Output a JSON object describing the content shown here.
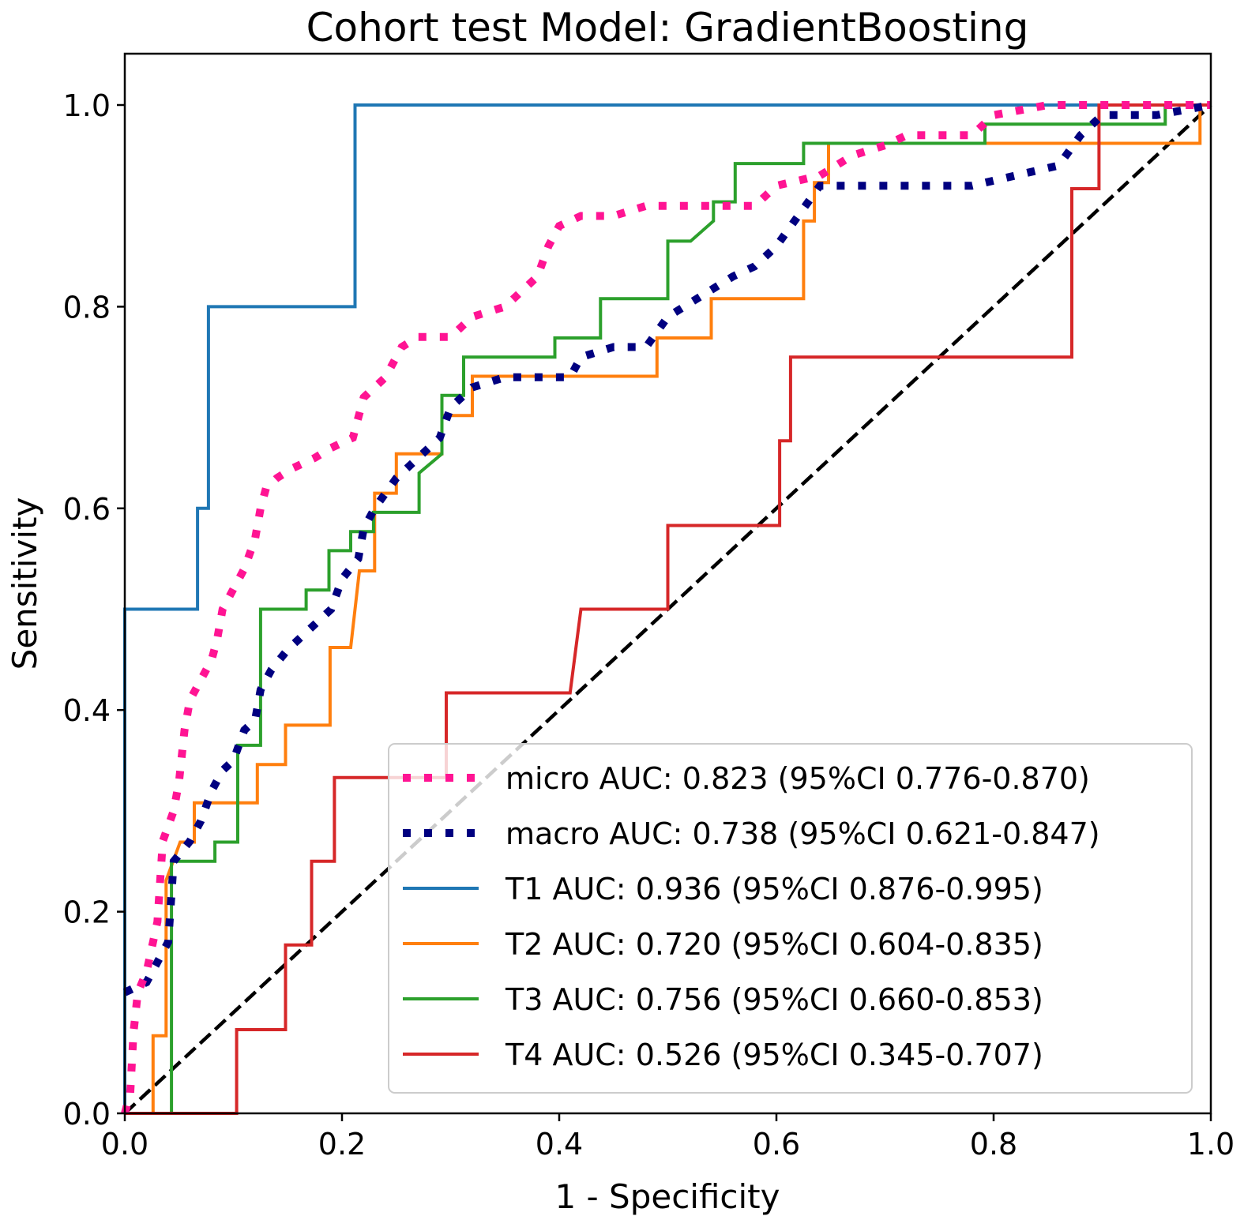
{
  "chart_data": {
    "type": "line",
    "title": "Cohort test Model: GradientBoosting",
    "xlabel": "1 - Specificity",
    "ylabel": "Sensitivity",
    "xlim": [
      0.0,
      1.0
    ],
    "ylim": [
      -0.0,
      1.05
    ],
    "xticks": [
      "0.0",
      "0.2",
      "0.4",
      "0.6",
      "0.8",
      "1.0"
    ],
    "yticks": [
      "0.0",
      "0.2",
      "0.4",
      "0.6",
      "0.8",
      "1.0"
    ],
    "grid": false,
    "legend_position": "lower-right",
    "series": [
      {
        "name": "micro",
        "label": "micro AUC: 0.823 (95%CI 0.776-0.870)",
        "color": "#ff1493",
        "style": "dotted",
        "points": [
          [
            0,
            0
          ],
          [
            0.005,
            0.02
          ],
          [
            0.008,
            0.08
          ],
          [
            0.012,
            0.12
          ],
          [
            0.02,
            0.14
          ],
          [
            0.03,
            0.19
          ],
          [
            0.035,
            0.27
          ],
          [
            0.045,
            0.3
          ],
          [
            0.05,
            0.33
          ],
          [
            0.055,
            0.38
          ],
          [
            0.06,
            0.41
          ],
          [
            0.07,
            0.43
          ],
          [
            0.08,
            0.45
          ],
          [
            0.085,
            0.47
          ],
          [
            0.09,
            0.5
          ],
          [
            0.1,
            0.52
          ],
          [
            0.11,
            0.54
          ],
          [
            0.12,
            0.57
          ],
          [
            0.125,
            0.6
          ],
          [
            0.13,
            0.62
          ],
          [
            0.14,
            0.63
          ],
          [
            0.155,
            0.64
          ],
          [
            0.175,
            0.65
          ],
          [
            0.19,
            0.66
          ],
          [
            0.21,
            0.67
          ],
          [
            0.22,
            0.71
          ],
          [
            0.24,
            0.73
          ],
          [
            0.255,
            0.76
          ],
          [
            0.27,
            0.77
          ],
          [
            0.3,
            0.77
          ],
          [
            0.32,
            0.79
          ],
          [
            0.35,
            0.8
          ],
          [
            0.38,
            0.83
          ],
          [
            0.39,
            0.86
          ],
          [
            0.4,
            0.88
          ],
          [
            0.42,
            0.89
          ],
          [
            0.45,
            0.89
          ],
          [
            0.48,
            0.9
          ],
          [
            0.52,
            0.9
          ],
          [
            0.58,
            0.9
          ],
          [
            0.6,
            0.92
          ],
          [
            0.64,
            0.93
          ],
          [
            0.67,
            0.95
          ],
          [
            0.7,
            0.96
          ],
          [
            0.72,
            0.97
          ],
          [
            0.78,
            0.97
          ],
          [
            0.8,
            0.99
          ],
          [
            0.85,
            1.0
          ],
          [
            0.95,
            1.0
          ],
          [
            1.0,
            1.0
          ]
        ]
      },
      {
        "name": "macro",
        "label": "macro AUC: 0.738 (95%CI 0.621-0.847)",
        "color": "#000080",
        "style": "dotted",
        "points": [
          [
            0,
            0.12
          ],
          [
            0.02,
            0.13
          ],
          [
            0.03,
            0.15
          ],
          [
            0.04,
            0.17
          ],
          [
            0.045,
            0.25
          ],
          [
            0.06,
            0.27
          ],
          [
            0.07,
            0.29
          ],
          [
            0.08,
            0.32
          ],
          [
            0.09,
            0.34
          ],
          [
            0.1,
            0.35
          ],
          [
            0.11,
            0.38
          ],
          [
            0.12,
            0.39
          ],
          [
            0.125,
            0.42
          ],
          [
            0.135,
            0.44
          ],
          [
            0.15,
            0.46
          ],
          [
            0.17,
            0.48
          ],
          [
            0.19,
            0.5
          ],
          [
            0.2,
            0.53
          ],
          [
            0.215,
            0.55
          ],
          [
            0.22,
            0.58
          ],
          [
            0.23,
            0.6
          ],
          [
            0.25,
            0.63
          ],
          [
            0.27,
            0.65
          ],
          [
            0.29,
            0.67
          ],
          [
            0.3,
            0.7
          ],
          [
            0.32,
            0.72
          ],
          [
            0.35,
            0.73
          ],
          [
            0.41,
            0.73
          ],
          [
            0.42,
            0.75
          ],
          [
            0.45,
            0.76
          ],
          [
            0.48,
            0.76
          ],
          [
            0.5,
            0.79
          ],
          [
            0.53,
            0.81
          ],
          [
            0.56,
            0.83
          ],
          [
            0.58,
            0.84
          ],
          [
            0.6,
            0.86
          ],
          [
            0.62,
            0.89
          ],
          [
            0.64,
            0.92
          ],
          [
            0.78,
            0.92
          ],
          [
            0.82,
            0.93
          ],
          [
            0.86,
            0.94
          ],
          [
            0.88,
            0.97
          ],
          [
            0.9,
            0.99
          ],
          [
            0.95,
            0.99
          ],
          [
            1.0,
            1.0
          ]
        ]
      },
      {
        "name": "T1",
        "label": "T1 AUC: 0.936 (95%CI 0.876-0.995)",
        "color": "#1f77b4",
        "style": "solid",
        "points": [
          [
            0,
            0
          ],
          [
            0,
            0.5
          ],
          [
            0.067,
            0.5
          ],
          [
            0.067,
            0.6
          ],
          [
            0.077,
            0.6
          ],
          [
            0.077,
            0.8
          ],
          [
            0.212,
            0.8
          ],
          [
            0.212,
            1.0
          ],
          [
            1.0,
            1.0
          ]
        ]
      },
      {
        "name": "T2",
        "label": "T2 AUC: 0.720 (95%CI 0.604-0.835)",
        "color": "#ff7f0e",
        "style": "solid",
        "points": [
          [
            0,
            0
          ],
          [
            0.026,
            0
          ],
          [
            0.026,
            0.077
          ],
          [
            0.038,
            0.077
          ],
          [
            0.038,
            0.231
          ],
          [
            0.051,
            0.269
          ],
          [
            0.064,
            0.269
          ],
          [
            0.064,
            0.308
          ],
          [
            0.122,
            0.308
          ],
          [
            0.122,
            0.346
          ],
          [
            0.148,
            0.346
          ],
          [
            0.148,
            0.385
          ],
          [
            0.189,
            0.385
          ],
          [
            0.189,
            0.462
          ],
          [
            0.208,
            0.462
          ],
          [
            0.216,
            0.538
          ],
          [
            0.23,
            0.538
          ],
          [
            0.23,
            0.615
          ],
          [
            0.25,
            0.615
          ],
          [
            0.25,
            0.654
          ],
          [
            0.292,
            0.654
          ],
          [
            0.292,
            0.692
          ],
          [
            0.32,
            0.692
          ],
          [
            0.32,
            0.731
          ],
          [
            0.49,
            0.731
          ],
          [
            0.49,
            0.769
          ],
          [
            0.54,
            0.769
          ],
          [
            0.54,
            0.808
          ],
          [
            0.625,
            0.808
          ],
          [
            0.625,
            0.885
          ],
          [
            0.635,
            0.885
          ],
          [
            0.635,
            0.923
          ],
          [
            0.648,
            0.923
          ],
          [
            0.648,
            0.962
          ],
          [
            0.99,
            0.962
          ],
          [
            0.99,
            1.0
          ],
          [
            1.0,
            1.0
          ]
        ]
      },
      {
        "name": "T3",
        "label": "T3 AUC: 0.756 (95%CI 0.660-0.853)",
        "color": "#2ca02c",
        "style": "solid",
        "points": [
          [
            0.043,
            0
          ],
          [
            0.043,
            0.25
          ],
          [
            0.083,
            0.25
          ],
          [
            0.083,
            0.269
          ],
          [
            0.104,
            0.269
          ],
          [
            0.104,
            0.365
          ],
          [
            0.125,
            0.365
          ],
          [
            0.125,
            0.5
          ],
          [
            0.167,
            0.5
          ],
          [
            0.167,
            0.519
          ],
          [
            0.188,
            0.519
          ],
          [
            0.188,
            0.558
          ],
          [
            0.208,
            0.558
          ],
          [
            0.208,
            0.577
          ],
          [
            0.229,
            0.577
          ],
          [
            0.229,
            0.596
          ],
          [
            0.271,
            0.596
          ],
          [
            0.271,
            0.635
          ],
          [
            0.292,
            0.654
          ],
          [
            0.292,
            0.712
          ],
          [
            0.312,
            0.712
          ],
          [
            0.312,
            0.75
          ],
          [
            0.396,
            0.75
          ],
          [
            0.396,
            0.769
          ],
          [
            0.438,
            0.769
          ],
          [
            0.438,
            0.808
          ],
          [
            0.5,
            0.808
          ],
          [
            0.5,
            0.865
          ],
          [
            0.521,
            0.865
          ],
          [
            0.542,
            0.885
          ],
          [
            0.542,
            0.904
          ],
          [
            0.562,
            0.904
          ],
          [
            0.562,
            0.942
          ],
          [
            0.625,
            0.942
          ],
          [
            0.625,
            0.962
          ],
          [
            0.792,
            0.962
          ],
          [
            0.792,
            0.981
          ],
          [
            0.958,
            0.981
          ],
          [
            0.958,
            1.0
          ],
          [
            1.0,
            1.0
          ]
        ]
      },
      {
        "name": "T4",
        "label": "T4 AUC: 0.526 (95%CI 0.345-0.707)",
        "color": "#d62728",
        "style": "solid",
        "points": [
          [
            0,
            0
          ],
          [
            0.103,
            0
          ],
          [
            0.103,
            0.083
          ],
          [
            0.148,
            0.083
          ],
          [
            0.148,
            0.167
          ],
          [
            0.172,
            0.167
          ],
          [
            0.172,
            0.25
          ],
          [
            0.193,
            0.25
          ],
          [
            0.193,
            0.333
          ],
          [
            0.296,
            0.333
          ],
          [
            0.296,
            0.417
          ],
          [
            0.41,
            0.417
          ],
          [
            0.42,
            0.5
          ],
          [
            0.5,
            0.5
          ],
          [
            0.5,
            0.583
          ],
          [
            0.603,
            0.583
          ],
          [
            0.603,
            0.667
          ],
          [
            0.613,
            0.667
          ],
          [
            0.613,
            0.75
          ],
          [
            0.872,
            0.75
          ],
          [
            0.872,
            0.917
          ],
          [
            0.897,
            0.917
          ],
          [
            0.897,
            1.0
          ],
          [
            1.0,
            1.0
          ]
        ]
      },
      {
        "name": "chance",
        "label": "",
        "color": "#000000",
        "style": "dashed",
        "points": [
          [
            0,
            0
          ],
          [
            1,
            1
          ]
        ]
      }
    ]
  }
}
